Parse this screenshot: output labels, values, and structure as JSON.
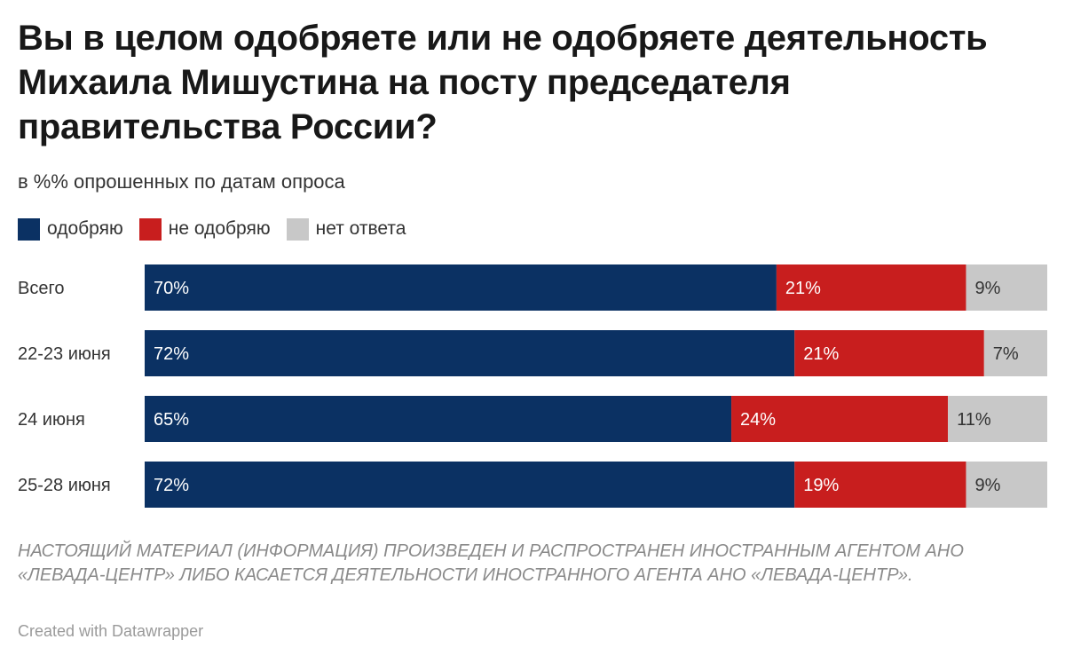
{
  "title": "Вы в целом одобряете или не одобряете деятельность Михаила Мишустина на посту председателя правительства России?",
  "subtitle": "в %% опрошенных по датам опроса",
  "footnote": "НАСТОЯЩИЙ МАТЕРИАЛ (ИНФОРМАЦИЯ) ПРОИЗВЕДЕН И РАСПРОСТРАНЕН ИНОСТРАННЫМ АГЕНТОМ АНО «ЛЕВАДА-ЦЕНТР» ЛИБО КАСАЕТСЯ ДЕЯТЕЛЬНОСТИ ИНОСТРАННОГО АГЕНТА АНО «ЛЕВАДА-ЦЕНТР».",
  "credit": "Created with Datawrapper",
  "chart_data": {
    "type": "bar",
    "orientation": "horizontal",
    "stacked": true,
    "normalized": true,
    "categories": [
      "Всего",
      "22-23 июня",
      "24 июня",
      "25-28 июня"
    ],
    "series": [
      {
        "name": "одобряю",
        "color": "#0b3163",
        "label_color": "#ffffff",
        "values": [
          70,
          72,
          65,
          72
        ],
        "labels": [
          "70%",
          "72%",
          "65%",
          "72%"
        ]
      },
      {
        "name": "не одобряю",
        "color": "#c81e1e",
        "label_color": "#ffffff",
        "values": [
          21,
          21,
          24,
          19
        ],
        "labels": [
          "21%",
          "21%",
          "24%",
          "19%"
        ]
      },
      {
        "name": "нет ответа",
        "color": "#c8c8c8",
        "label_color": "#333333",
        "values": [
          9,
          7,
          11,
          9
        ],
        "labels": [
          "9%",
          "7%",
          "11%",
          "9%"
        ]
      }
    ],
    "xlim": [
      0,
      100
    ],
    "legend_position": "top-left",
    "grid": false
  }
}
